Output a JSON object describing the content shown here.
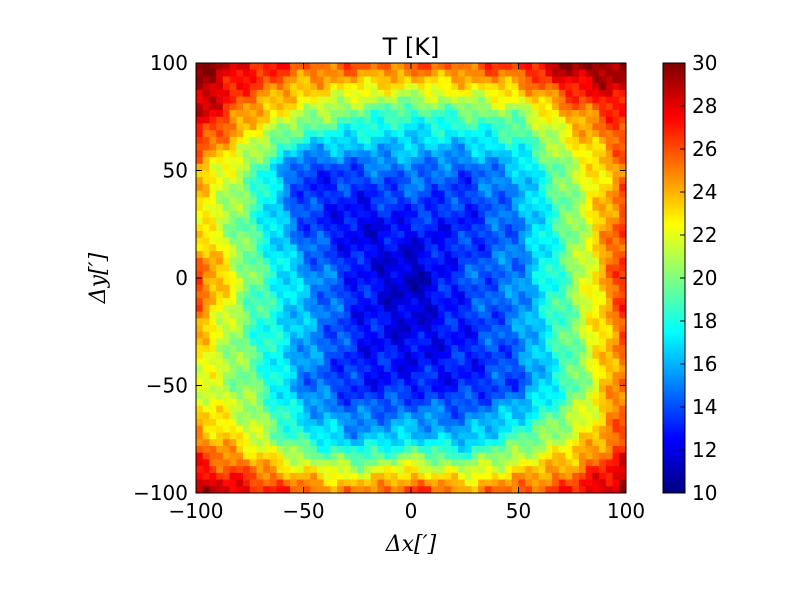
{
  "chart_data": {
    "type": "heatmap",
    "title": "T [K]",
    "xlabel": "Δx[′]",
    "ylabel": "Δy[′]",
    "xlim": [
      -100,
      100
    ],
    "ylim": [
      -100,
      100
    ],
    "x_ticks": [
      -100,
      -50,
      0,
      50,
      100
    ],
    "y_ticks": [
      -100,
      -50,
      0,
      50,
      100
    ],
    "x_tick_labels": [
      "−100",
      "−50",
      "0",
      "50",
      "100"
    ],
    "y_tick_labels": [
      "−100",
      "−50",
      "0",
      "50",
      "100"
    ],
    "colorbar": {
      "colormap": "jet",
      "range": [
        10,
        30
      ],
      "ticks": [
        10,
        12,
        14,
        16,
        18,
        20,
        22,
        24,
        26,
        28,
        30
      ],
      "tick_labels": [
        "10",
        "12",
        "14",
        "16",
        "18",
        "20",
        "22",
        "24",
        "26",
        "28",
        "30"
      ],
      "colors": [
        "#00007f",
        "#0000ff",
        "#007fff",
        "#00ffff",
        "#7fff7f",
        "#ffff00",
        "#ff7f00",
        "#ff0000",
        "#7f0000"
      ]
    },
    "grid": false,
    "field_samples": {
      "coords": [
        -100,
        -75,
        -50,
        -25,
        0,
        25,
        50,
        75,
        100
      ],
      "rows_top_to_bottom": [
        [
          30,
          28,
          26,
          26,
          26,
          26,
          27,
          30,
          30
        ],
        [
          29,
          24,
          21,
          19,
          18,
          19,
          20,
          24,
          27
        ],
        [
          24,
          20,
          13,
          14,
          15,
          14,
          16,
          21,
          25
        ],
        [
          23,
          19,
          14,
          12,
          13,
          13,
          15,
          20,
          27
        ],
        [
          27,
          20,
          16,
          13,
          11,
          14,
          15,
          20,
          27
        ],
        [
          24,
          19,
          16,
          13,
          12,
          13,
          15,
          20,
          26
        ],
        [
          22,
          20,
          15,
          13,
          13,
          13,
          14,
          19,
          26
        ],
        [
          25,
          22,
          18,
          16,
          17,
          16,
          19,
          22,
          26
        ],
        [
          29,
          28,
          26,
          25,
          27,
          25,
          26,
          27,
          30
        ]
      ]
    }
  }
}
